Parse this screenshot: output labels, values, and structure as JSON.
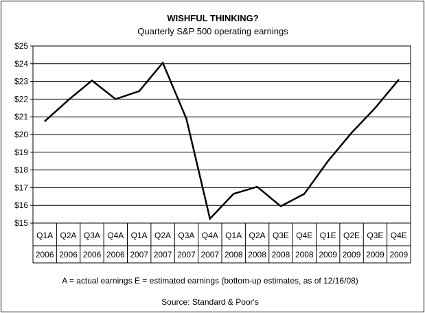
{
  "chart_data": {
    "type": "line",
    "title": "WISHFUL THINKING?",
    "subtitle": "Quarterly S&P 500 operating earnings",
    "xlabel": "",
    "ylabel": "",
    "ylim": [
      15,
      25
    ],
    "ytick_labels": [
      "$15",
      "$16",
      "$17",
      "$18",
      "$19",
      "$20",
      "$21",
      "$22",
      "$23",
      "$24",
      "$25"
    ],
    "grid": true,
    "categories": [
      "Q1A 2006",
      "Q2A 2006",
      "Q3A 2006",
      "Q4A 2006",
      "Q1A 2007",
      "Q2A 2007",
      "Q3A 2007",
      "Q4A 2007",
      "Q1A 2008",
      "Q2A 2008",
      "Q3E 2008",
      "Q4E 2008",
      "Q1E 2009",
      "Q2E 2009",
      "Q3E 2009",
      "Q4E 2009"
    ],
    "quarter_labels": [
      "Q1A",
      "Q2A",
      "Q3A",
      "Q4A",
      "Q1A",
      "Q2A",
      "Q3A",
      "Q4A",
      "Q1A",
      "Q2A",
      "Q3E",
      "Q4E",
      "Q1E",
      "Q2E",
      "Q3E",
      "Q4E"
    ],
    "year_labels": [
      "2006",
      "2006",
      "2006",
      "2006",
      "2007",
      "2007",
      "2007",
      "2007",
      "2008",
      "2008",
      "2008",
      "2008",
      "2009",
      "2009",
      "2009",
      "2009"
    ],
    "values": [
      20.75,
      21.95,
      23.05,
      22.0,
      22.45,
      24.05,
      20.9,
      15.25,
      16.65,
      17.05,
      15.95,
      16.65,
      18.5,
      20.1,
      21.5,
      23.1
    ],
    "footnote": "A = actual earnings  E = estimated earnings (bottom-up estimates, as of 12/16/08)",
    "source": "Source: Standard & Poor's",
    "line_color": "#000000",
    "grid_color": "#000000"
  }
}
